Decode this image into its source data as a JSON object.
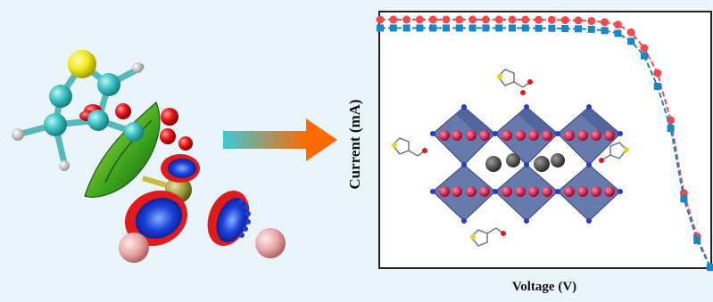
{
  "colors": {
    "background": "#eaf4fb",
    "series_red": "#ee4a4f",
    "series_blue": "#1a86c8",
    "arrow_start": "#3cc9d6",
    "arrow_end": "#ff6a00",
    "octahedron": "#5a6fa6"
  },
  "chart_data": {
    "type": "line",
    "title": "",
    "xlabel": "Voltage (V)",
    "ylabel": "Current (mA)",
    "grid": false,
    "legend": "none",
    "xlim": [
      0,
      1.0
    ],
    "ylim": [
      0,
      1.0
    ],
    "series": [
      {
        "color": "#ee4a4f",
        "marker": "circle",
        "x": [
          0.0,
          0.04,
          0.08,
          0.12,
          0.16,
          0.2,
          0.24,
          0.28,
          0.32,
          0.36,
          0.4,
          0.44,
          0.48,
          0.52,
          0.56,
          0.6,
          0.64,
          0.68,
          0.72,
          0.76,
          0.8,
          0.84,
          0.88,
          0.92,
          0.96,
          1.0
        ],
        "values": [
          0.972,
          0.972,
          0.972,
          0.972,
          0.972,
          0.972,
          0.972,
          0.972,
          0.972,
          0.972,
          0.972,
          0.972,
          0.971,
          0.971,
          0.97,
          0.969,
          0.967,
          0.962,
          0.952,
          0.922,
          0.86,
          0.762,
          0.577,
          0.291,
          0.121,
          0.0
        ]
      },
      {
        "color": "#1a86c8",
        "marker": "square",
        "x": [
          0.0,
          0.04,
          0.08,
          0.12,
          0.16,
          0.2,
          0.24,
          0.28,
          0.32,
          0.36,
          0.4,
          0.44,
          0.48,
          0.52,
          0.56,
          0.6,
          0.64,
          0.68,
          0.72,
          0.76,
          0.8,
          0.84,
          0.88,
          0.92,
          0.96,
          1.0
        ],
        "values": [
          0.939,
          0.939,
          0.939,
          0.939,
          0.939,
          0.939,
          0.939,
          0.939,
          0.939,
          0.939,
          0.939,
          0.939,
          0.938,
          0.938,
          0.937,
          0.936,
          0.934,
          0.929,
          0.918,
          0.887,
          0.83,
          0.71,
          0.545,
          0.268,
          0.105,
          0.0
        ]
      }
    ]
  },
  "decor": {
    "molecule": "thiophene-molecule-with-orbital-lobes",
    "arrow": "gradient-right-arrow",
    "crystal": "perovskite-octahedra-lattice"
  }
}
